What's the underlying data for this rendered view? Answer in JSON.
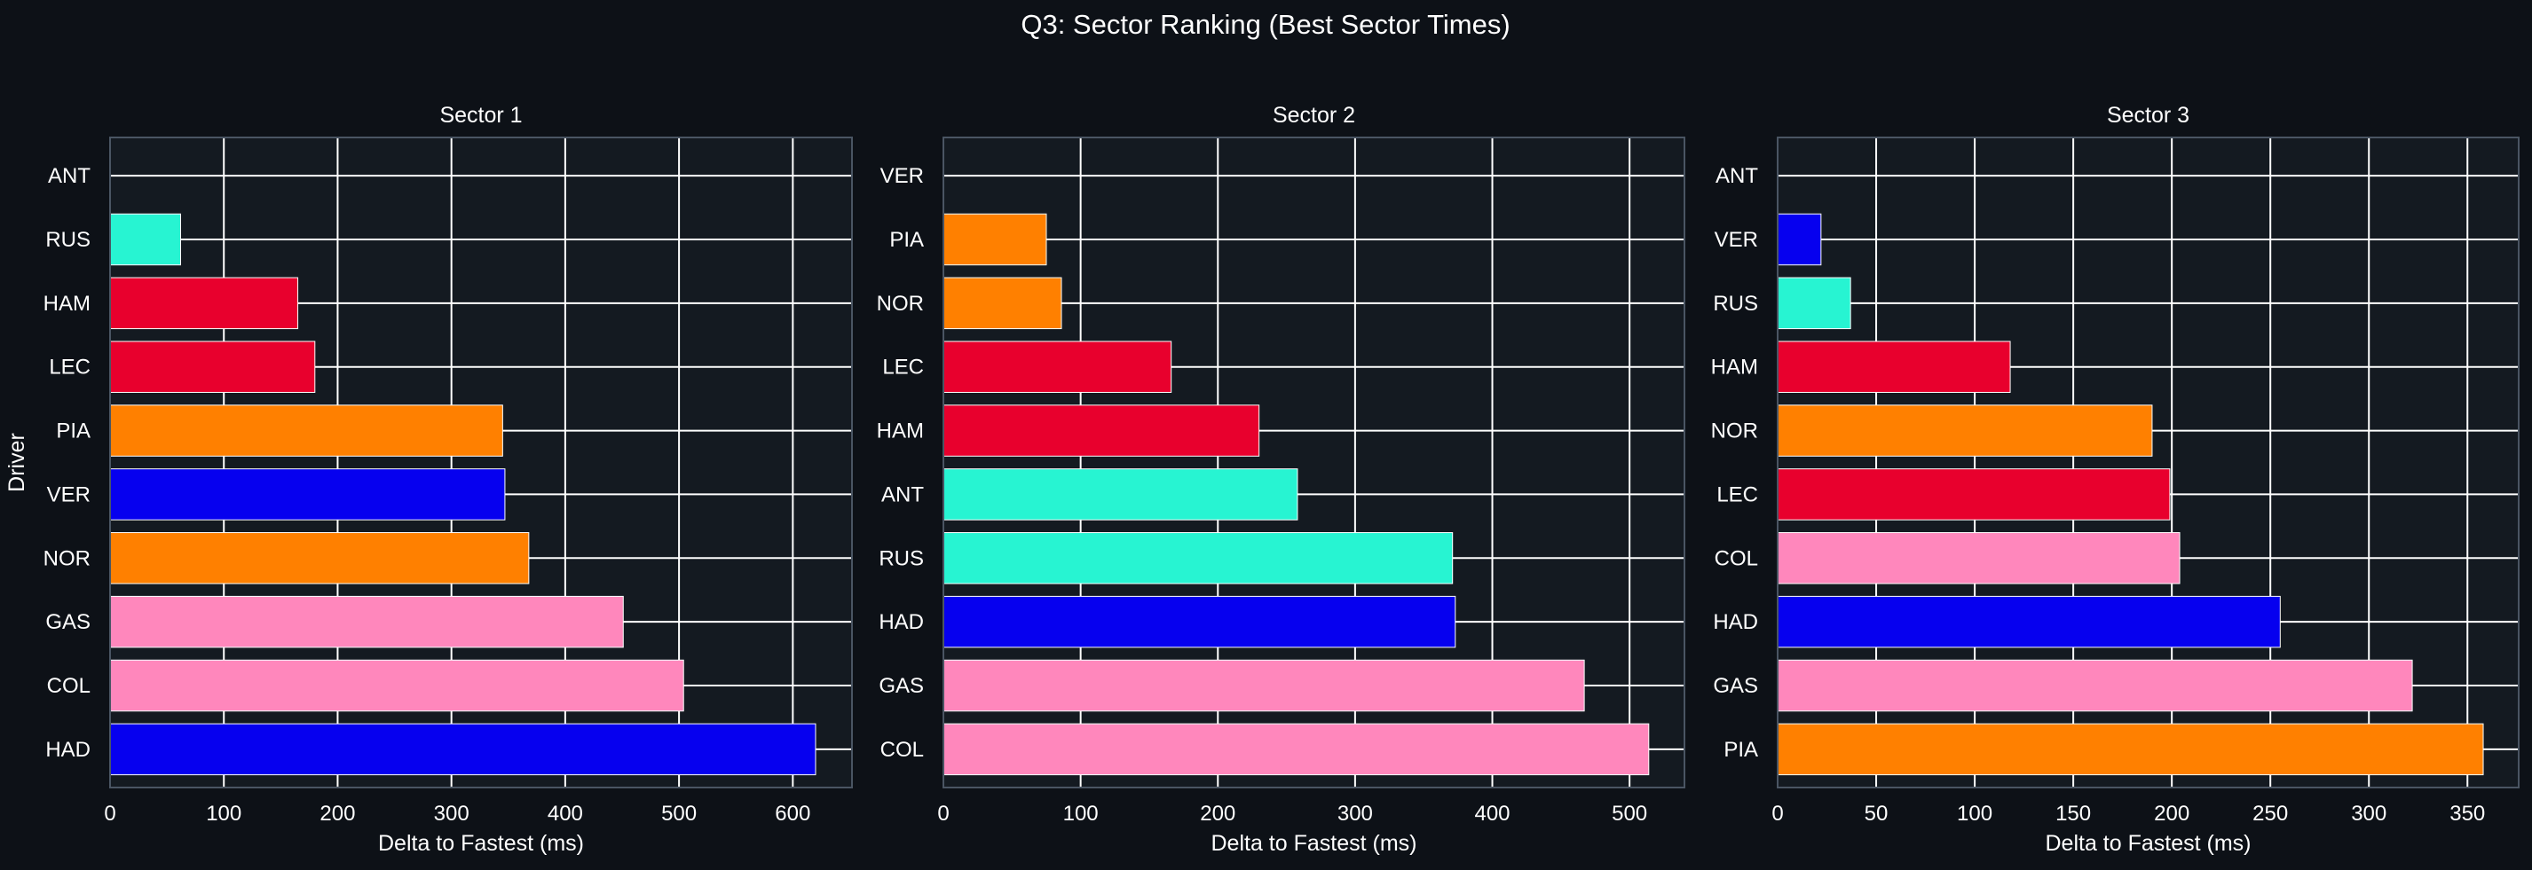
{
  "figure": {
    "title": "Q3: Sector Ranking (Best Sector Times)",
    "background": "#0d1117",
    "axes_background": "#141a21",
    "grid_color": "#ffffff",
    "spine_color": "#4a5563",
    "text_color": "#ffffff"
  },
  "chart_data": [
    {
      "type": "bar",
      "orientation": "horizontal",
      "title": "Sector 1",
      "xlabel": "Delta to Fastest (ms)",
      "ylabel": "Driver",
      "xlim": [
        0,
        652
      ],
      "xticks": [
        0,
        100,
        200,
        300,
        400,
        500,
        600
      ],
      "grid": true,
      "categories": [
        "ANT",
        "RUS",
        "HAM",
        "LEC",
        "PIA",
        "VER",
        "NOR",
        "GAS",
        "COL",
        "HAD"
      ],
      "values": [
        0,
        62,
        165,
        180,
        345,
        347,
        368,
        451,
        504,
        620
      ],
      "colors": [
        "#27f4d2",
        "#27f4d2",
        "#e8002d",
        "#e8002d",
        "#ff8000",
        "#0600ef",
        "#ff8000",
        "#ff87bc",
        "#ff87bc",
        "#0600ef"
      ]
    },
    {
      "type": "bar",
      "orientation": "horizontal",
      "title": "Sector 2",
      "xlabel": "Delta to Fastest (ms)",
      "ylabel": "",
      "xlim": [
        0,
        540
      ],
      "xticks": [
        0,
        100,
        200,
        300,
        400,
        500
      ],
      "grid": true,
      "categories": [
        "VER",
        "PIA",
        "NOR",
        "LEC",
        "HAM",
        "ANT",
        "RUS",
        "HAD",
        "GAS",
        "COL"
      ],
      "values": [
        0,
        75,
        86,
        166,
        230,
        258,
        371,
        373,
        467,
        514
      ],
      "colors": [
        "#0600ef",
        "#ff8000",
        "#ff8000",
        "#e8002d",
        "#e8002d",
        "#27f4d2",
        "#27f4d2",
        "#0600ef",
        "#ff87bc",
        "#ff87bc"
      ]
    },
    {
      "type": "bar",
      "orientation": "horizontal",
      "title": "Sector 3",
      "xlabel": "Delta to Fastest (ms)",
      "ylabel": "",
      "xlim": [
        0,
        376
      ],
      "xticks": [
        0,
        50,
        100,
        150,
        200,
        250,
        300,
        350
      ],
      "grid": true,
      "categories": [
        "ANT",
        "VER",
        "RUS",
        "HAM",
        "NOR",
        "LEC",
        "COL",
        "HAD",
        "GAS",
        "PIA"
      ],
      "values": [
        0,
        22,
        37,
        118,
        190,
        199,
        204,
        255,
        322,
        358
      ],
      "colors": [
        "#27f4d2",
        "#0600ef",
        "#27f4d2",
        "#e8002d",
        "#ff8000",
        "#e8002d",
        "#ff87bc",
        "#0600ef",
        "#ff87bc",
        "#ff8000"
      ]
    }
  ]
}
